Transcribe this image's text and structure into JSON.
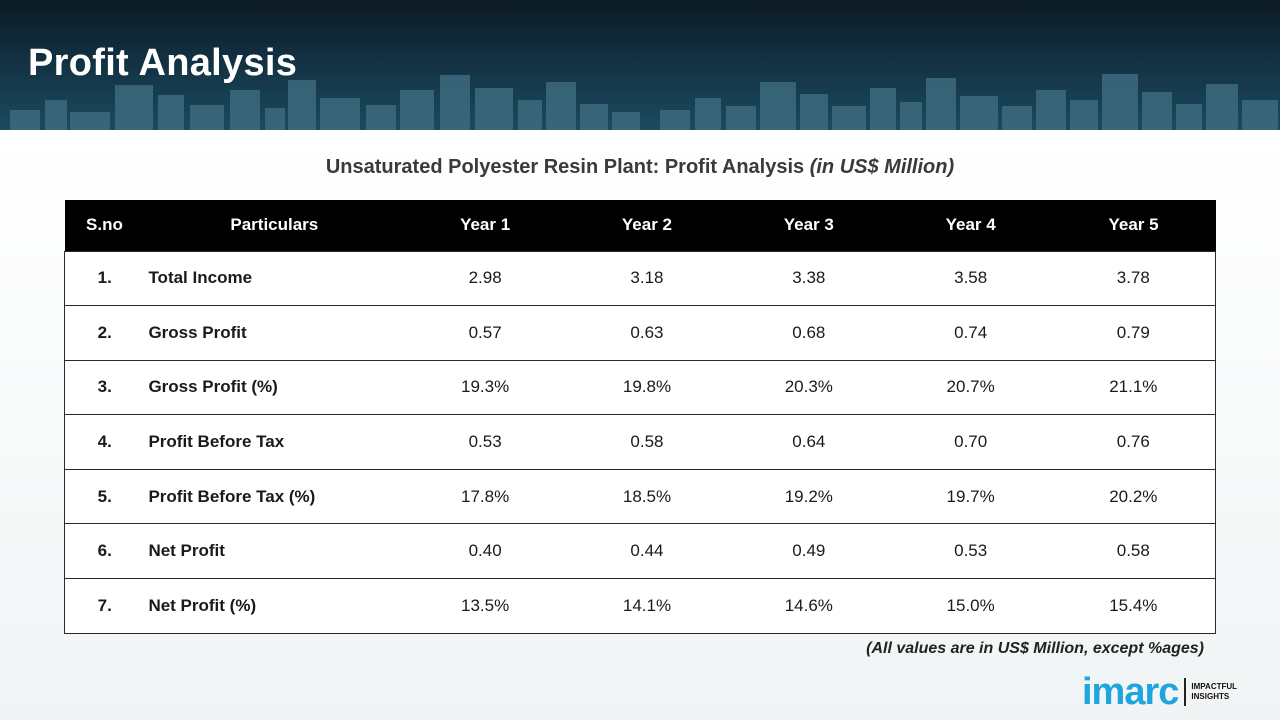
{
  "header": {
    "title": "Profit Analysis"
  },
  "table": {
    "title": "Unsaturated Polyester Resin Plant: Profit Analysis ",
    "title_unit": "(in US$ Million)",
    "columns": [
      "S.no",
      "Particulars",
      "Year 1",
      "Year 2",
      "Year 3",
      "Year 4",
      "Year 5"
    ],
    "rows": [
      {
        "sno": "1.",
        "particular": "Total Income",
        "values": [
          "2.98",
          "3.18",
          "3.38",
          "3.58",
          "3.78"
        ]
      },
      {
        "sno": "2.",
        "particular": "Gross Profit",
        "values": [
          "0.57",
          "0.63",
          "0.68",
          "0.74",
          "0.79"
        ]
      },
      {
        "sno": "3.",
        "particular": "Gross Profit (%)",
        "values": [
          "19.3%",
          "19.8%",
          "20.3%",
          "20.7%",
          "21.1%"
        ]
      },
      {
        "sno": "4.",
        "particular": "Profit Before Tax",
        "values": [
          "0.53",
          "0.58",
          "0.64",
          "0.70",
          "0.76"
        ]
      },
      {
        "sno": "5.",
        "particular": "Profit Before Tax (%)",
        "values": [
          "17.8%",
          "18.5%",
          "19.2%",
          "19.7%",
          "20.2%"
        ]
      },
      {
        "sno": "6.",
        "particular": "Net Profit",
        "values": [
          "0.40",
          "0.44",
          "0.49",
          "0.53",
          "0.58"
        ]
      },
      {
        "sno": "7.",
        "particular": "Net Profit (%)",
        "values": [
          "13.5%",
          "14.1%",
          "14.6%",
          "15.0%",
          "15.4%"
        ]
      }
    ]
  },
  "footnote": "(All values are in US$ Million, except %ages)",
  "logo": {
    "wordmark": "imarc",
    "tagline": "IMPACTFUL\nINSIGHTS"
  },
  "colors": {
    "header_bg": "#123041",
    "table_header_bg": "#000000",
    "logo_blue": "#1ea5dc"
  }
}
